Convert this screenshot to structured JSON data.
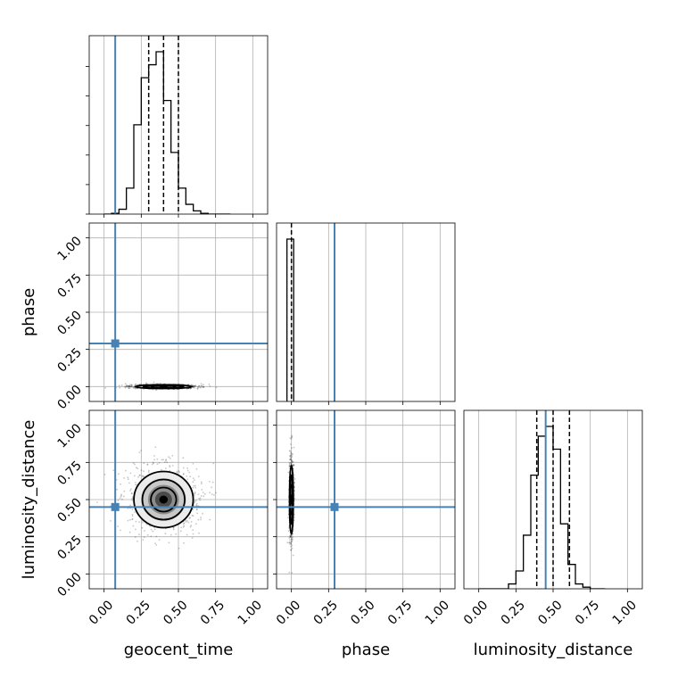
{
  "chart_data": {
    "type": "corner",
    "parameters": [
      "geocent_time",
      "phase",
      "luminosity_distance"
    ],
    "axis_labels": [
      "geocent_time",
      "phase",
      "luminosity_distance"
    ],
    "ranges": [
      [
        -0.1,
        1.1
      ],
      [
        -0.1,
        1.1
      ],
      [
        -0.1,
        1.1
      ]
    ],
    "ticks": [
      0,
      0.25,
      0.5,
      0.75,
      1.0
    ],
    "tick_labels": [
      "0.00",
      "0.25",
      "0.50",
      "0.75",
      "1.00"
    ],
    "grid": true,
    "truths": {
      "values": [
        0.075,
        0.29,
        0.45
      ],
      "color": "#4682b4"
    },
    "quantiles": {
      "geocent_time": [
        0.3,
        0.4,
        0.5
      ],
      "phase": [
        0.0
      ],
      "luminosity_distance": [
        0.39,
        0.5,
        0.61
      ]
    },
    "histograms": {
      "geocent_time": {
        "edges": [
          0.0,
          0.05,
          0.1,
          0.15,
          0.2,
          0.25,
          0.3,
          0.35,
          0.4,
          0.45,
          0.5,
          0.55,
          0.6,
          0.65,
          0.7,
          0.75,
          0.8,
          0.85
        ],
        "counts": [
          0.0,
          0.005,
          0.03,
          0.16,
          0.55,
          0.84,
          0.92,
          1.0,
          0.7,
          0.38,
          0.16,
          0.06,
          0.02,
          0.005,
          0.0,
          0.0,
          0.0
        ]
      },
      "phase": {
        "edges": [
          -0.03,
          0.0,
          0.015
        ],
        "counts": [
          1.0,
          1.0
        ]
      },
      "luminosity_distance": {
        "edges": [
          0.0,
          0.05,
          0.1,
          0.15,
          0.2,
          0.25,
          0.3,
          0.35,
          0.4,
          0.45,
          0.5,
          0.55,
          0.6,
          0.65,
          0.7,
          0.75,
          0.8,
          0.85
        ],
        "counts": [
          0.0,
          0.0,
          0.0,
          0.0,
          0.03,
          0.11,
          0.33,
          0.7,
          0.94,
          1.0,
          0.86,
          0.4,
          0.15,
          0.03,
          0.01,
          0.0,
          0.0
        ]
      }
    },
    "joint_2d": [
      {
        "x": "geocent_time",
        "y": "phase",
        "center": [
          0.4,
          0.0
        ],
        "sd": [
          0.09,
          0.006
        ]
      },
      {
        "x": "geocent_time",
        "y": "luminosity_distance",
        "center": [
          0.4,
          0.5
        ],
        "sd": [
          0.095,
          0.09
        ]
      },
      {
        "x": "phase",
        "y": "luminosity_distance",
        "center": [
          0.0,
          0.5
        ],
        "sd": [
          0.006,
          0.11
        ]
      }
    ]
  }
}
